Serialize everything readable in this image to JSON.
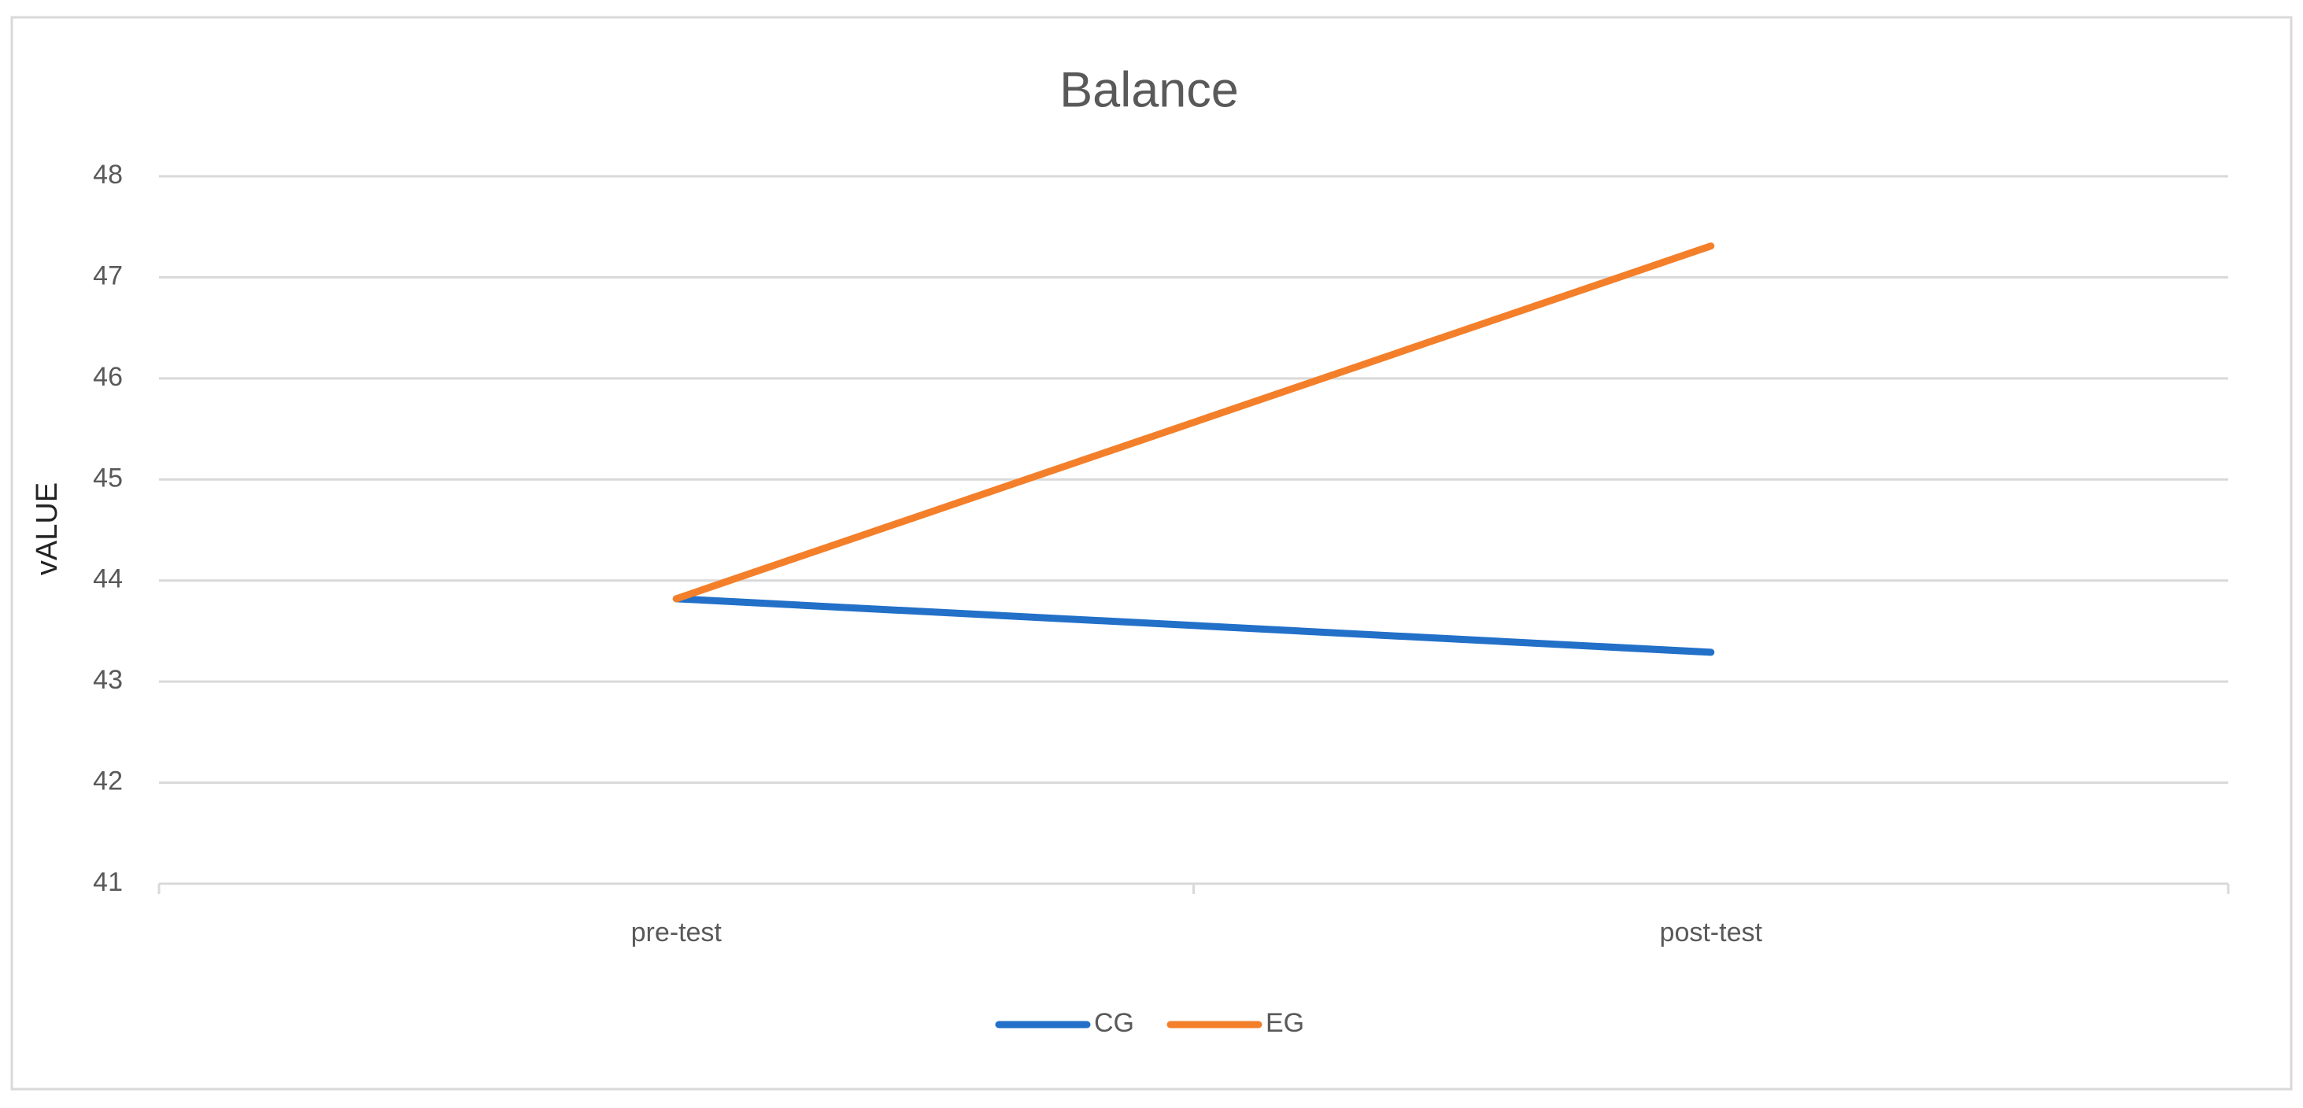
{
  "chart_data": {
    "type": "line",
    "title": "Balance",
    "y_label": "vALUE",
    "categories": [
      "pre-test",
      "post-test"
    ],
    "series": [
      {
        "name": "CG",
        "color": "#2270c8",
        "values": [
          43.82,
          43.29
        ]
      },
      {
        "name": "EG",
        "color": "#f47f2a",
        "values": [
          43.82,
          47.31
        ]
      }
    ],
    "ylim": [
      41,
      48
    ],
    "yticks": [
      41,
      42,
      43,
      44,
      45,
      46,
      47,
      48
    ],
    "grid": true,
    "legend": "bottom"
  }
}
